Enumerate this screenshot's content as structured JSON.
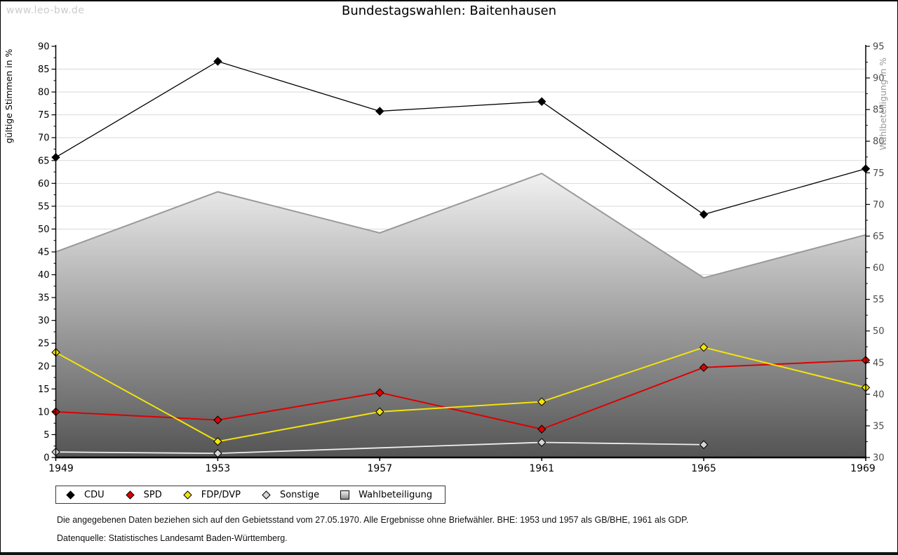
{
  "watermark": "www.leo-bw.de",
  "title": "Bundestagswahlen: Baitenhausen",
  "legend": {
    "items": [
      {
        "label": "CDU",
        "marker": "diamond",
        "color": "#000000"
      },
      {
        "label": "SPD",
        "marker": "diamond",
        "color": "#dd0000"
      },
      {
        "label": "FDP/DVP",
        "marker": "diamond",
        "color": "#f2e30c"
      },
      {
        "label": "Sonstige",
        "marker": "diamond",
        "color": "#d6d6d6"
      },
      {
        "label": "Wahlbeteiligung",
        "marker": "gradient-square",
        "color": "#999999"
      }
    ]
  },
  "footnotes": [
    "Die angegebenen Daten beziehen sich auf den Gebietsstand vom 27.05.1970. Alle Ergebnisse ohne Briefwähler. BHE: 1953 und 1957 als GB/BHE, 1961 als GDP.",
    "Datenquelle: Statistisches Landesamt Baden-Württemberg."
  ],
  "chart_data": {
    "type": "line",
    "title": "Bundestagswahlen: Baitenhausen",
    "x": [
      1949,
      1953,
      1957,
      1961,
      1965,
      1969
    ],
    "xlabel": "",
    "grid": "horizontal",
    "legend_position": "bottom",
    "axes": {
      "left": {
        "label": "gültige Stimmen in %",
        "min": 0,
        "max": 90,
        "step": 5,
        "color": "#000000"
      },
      "right": {
        "label": "Wahlbeteiligung in %",
        "min": 30,
        "max": 95,
        "step": 5,
        "color": "#999999"
      }
    },
    "series": [
      {
        "name": "Wahlbeteiligung",
        "type": "area",
        "axis": "right",
        "color": "#999999",
        "values": [
          62.5,
          72.0,
          65.5,
          74.9,
          58.4,
          65.2
        ]
      },
      {
        "name": "CDU",
        "type": "line",
        "axis": "left",
        "color": "#000000",
        "width": 1.3,
        "values": [
          65.7,
          86.7,
          75.8,
          77.9,
          53.2,
          63.2
        ]
      },
      {
        "name": "SPD",
        "type": "line",
        "axis": "left",
        "color": "#dd0000",
        "width": 2,
        "values": [
          10.0,
          8.2,
          14.2,
          6.2,
          19.7,
          21.3
        ]
      },
      {
        "name": "FDP/DVP",
        "type": "line",
        "axis": "left",
        "color": "#f2e30c",
        "width": 2,
        "values": [
          23.0,
          3.5,
          10.0,
          12.2,
          24.1,
          15.3
        ]
      },
      {
        "name": "Sonstige",
        "type": "line",
        "axis": "left",
        "color": "#ededed",
        "marker_fill": "#d6d6d6",
        "width": 1.8,
        "values": [
          1.2,
          0.9,
          null,
          3.3,
          2.8,
          null
        ]
      }
    ]
  }
}
